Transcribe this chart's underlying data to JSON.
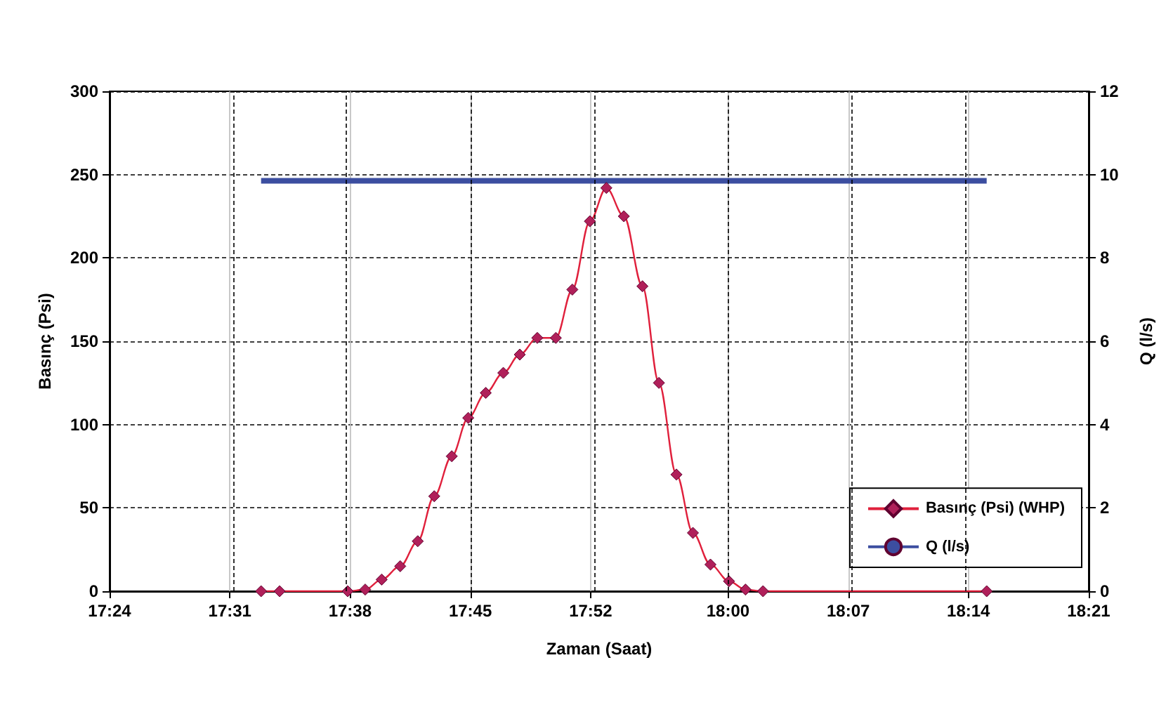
{
  "chart_data": {
    "type": "line",
    "xlabel": "Zaman (Saat)",
    "ylabel": "Basınç (Psi)",
    "y2label": "Q (l/s)",
    "xlim": [
      17.4,
      18.35
    ],
    "xticks": [
      {
        "value": 17.4,
        "label": "17:24"
      },
      {
        "value": 17.5167,
        "label": "17:31"
      },
      {
        "value": 17.6333,
        "label": "17:38"
      },
      {
        "value": 17.75,
        "label": "17:45"
      },
      {
        "value": 17.8667,
        "label": "17:52"
      },
      {
        "value": 18.0,
        "label": "18:00"
      },
      {
        "value": 18.1167,
        "label": "18:07"
      },
      {
        "value": 18.2333,
        "label": "18:14"
      },
      {
        "value": 18.35,
        "label": "18:21"
      }
    ],
    "ylim": [
      0,
      300
    ],
    "yticks": [
      0,
      50,
      100,
      150,
      200,
      250,
      300
    ],
    "y2lim": [
      0,
      12
    ],
    "y2ticks": [
      0,
      2,
      4,
      6,
      8,
      10,
      12
    ],
    "grid": true,
    "legend": "bottom right",
    "series": [
      {
        "name": "Basınç (Psi) (WHP)",
        "color": "#e0203c",
        "marker": "diamond",
        "x": [
          17.547,
          17.565,
          17.631,
          17.648,
          17.664,
          17.682,
          17.699,
          17.715,
          17.732,
          17.748,
          17.765,
          17.782,
          17.798,
          17.815,
          17.833,
          17.849,
          17.866,
          17.882,
          17.899,
          17.917,
          17.933,
          17.95,
          17.966,
          17.983,
          18.001,
          18.017,
          18.034,
          18.251
        ],
        "values": [
          0,
          0,
          0,
          1,
          7,
          15,
          30,
          57,
          81,
          104,
          119,
          131,
          142,
          152,
          152,
          181,
          222,
          242,
          225,
          183,
          125,
          70,
          35,
          16,
          6,
          1,
          0,
          0
        ]
      },
      {
        "name": "Q (l/s)",
        "color": "#3c4ea0",
        "marker": "none",
        "axis": "y2",
        "x": [
          17.547,
          18.251
        ],
        "values": [
          9.85,
          9.85
        ]
      }
    ]
  }
}
